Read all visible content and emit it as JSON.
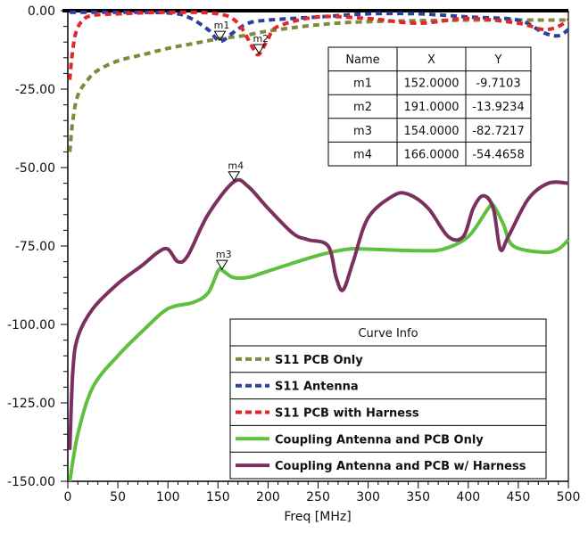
{
  "chart_data": {
    "type": "line",
    "title": "",
    "xlabel": "Freq [MHz]",
    "ylabel": "",
    "xlim": [
      0,
      500
    ],
    "ylim": [
      -150,
      0
    ],
    "x_ticks": [
      0,
      50,
      100,
      150,
      200,
      250,
      300,
      350,
      400,
      450,
      500
    ],
    "x_tick_labels": [
      "0",
      "50",
      "100",
      "150",
      "200",
      "250",
      "300",
      "350",
      "400",
      "450",
      "500"
    ],
    "y_ticks": [
      0,
      -25,
      -50,
      -75,
      -100,
      -125,
      -150
    ],
    "y_tick_labels": [
      "0.00",
      "-25.00",
      "-50.00",
      "-75.00",
      "-100.00",
      "-125.00",
      "-150.00"
    ],
    "grid": false,
    "legend": {
      "title": "Curve Info",
      "placement": "bottom-right"
    },
    "series": [
      {
        "name": "S11 PCB Only",
        "color": "#7f8a3a",
        "dash": true,
        "x": [
          2,
          5,
          10,
          20,
          30,
          50,
          75,
          100,
          125,
          150,
          175,
          200,
          250,
          300,
          400,
          500
        ],
        "y": [
          -45,
          -35,
          -27,
          -22,
          -19,
          -16,
          -14,
          -12,
          -10.5,
          -9,
          -8,
          -6.5,
          -4.5,
          -3.5,
          -3,
          -3
        ]
      },
      {
        "name": "S11 Antenna",
        "color": "#2b3f9e",
        "dash": true,
        "x": [
          2,
          50,
          100,
          120,
          140,
          152,
          165,
          180,
          200,
          250,
          300,
          350,
          400,
          450,
          475,
          490,
          500
        ],
        "y": [
          -0.5,
          -0.5,
          -0.7,
          -2,
          -6,
          -9.7,
          -7,
          -4,
          -3,
          -2,
          -1,
          -1,
          -2,
          -3,
          -7,
          -8,
          -6
        ]
      },
      {
        "name": "S11 PCB with Harness",
        "color": "#e3262b",
        "dash": true,
        "x": [
          2,
          4,
          8,
          15,
          25,
          50,
          100,
          150,
          170,
          185,
          191,
          200,
          210,
          250,
          300,
          350,
          400,
          450,
          475,
          490,
          500
        ],
        "y": [
          -22,
          -15,
          -7,
          -3,
          -1.5,
          -1,
          -0.5,
          -1,
          -4,
          -12,
          -13.9,
          -9,
          -5,
          -2,
          -2.5,
          -4,
          -2.5,
          -4,
          -6,
          -5,
          -3
        ]
      },
      {
        "name": "Coupling Antenna and PCB Only",
        "color": "#5fbf3f",
        "dash": false,
        "x": [
          2,
          10,
          25,
          50,
          75,
          100,
          125,
          140,
          150,
          154,
          165,
          180,
          200,
          250,
          280,
          300,
          350,
          375,
          400,
          420,
          425,
          435,
          445,
          475,
          490,
          500
        ],
        "y": [
          -150,
          -135,
          -120,
          -110,
          -102,
          -95,
          -93,
          -90,
          -83,
          -82.7,
          -85,
          -85,
          -83,
          -78,
          -76,
          -76,
          -76.5,
          -76,
          -72,
          -63,
          -62,
          -68,
          -75,
          -77,
          -76,
          -73
        ]
      },
      {
        "name": "Coupling Antenna and PCB w/ Harness",
        "color": "#7b3060",
        "dash": false,
        "x": [
          2,
          5,
          10,
          25,
          50,
          75,
          90,
          100,
          110,
          120,
          140,
          166,
          180,
          200,
          225,
          240,
          260,
          268,
          275,
          285,
          300,
          325,
          340,
          360,
          380,
          395,
          405,
          415,
          425,
          432,
          440,
          460,
          480,
          500
        ],
        "y": [
          -140,
          -115,
          -104,
          -95,
          -87,
          -81,
          -77,
          -76,
          -80,
          -78,
          -65,
          -54.5,
          -56,
          -63,
          -71,
          -73,
          -75,
          -85,
          -89,
          -80,
          -66,
          -59,
          -58.5,
          -63,
          -72,
          -72,
          -63,
          -59,
          -63,
          -76,
          -72,
          -60,
          -55,
          -55
        ]
      }
    ],
    "markers": [
      {
        "name": "m1",
        "x": 152,
        "y": -9.7103,
        "x_text": "152.0000",
        "y_text": "-9.7103"
      },
      {
        "name": "m2",
        "x": 191,
        "y": -13.9234,
        "x_text": "191.0000",
        "y_text": "-13.9234"
      },
      {
        "name": "m3",
        "x": 154,
        "y": -82.7217,
        "x_text": "154.0000",
        "y_text": "-82.7217"
      },
      {
        "name": "m4",
        "x": 166,
        "y": -54.4658,
        "x_text": "166.0000",
        "y_text": "-54.4658"
      }
    ],
    "marker_table": {
      "headers": [
        "Name",
        "X",
        "Y"
      ]
    }
  }
}
